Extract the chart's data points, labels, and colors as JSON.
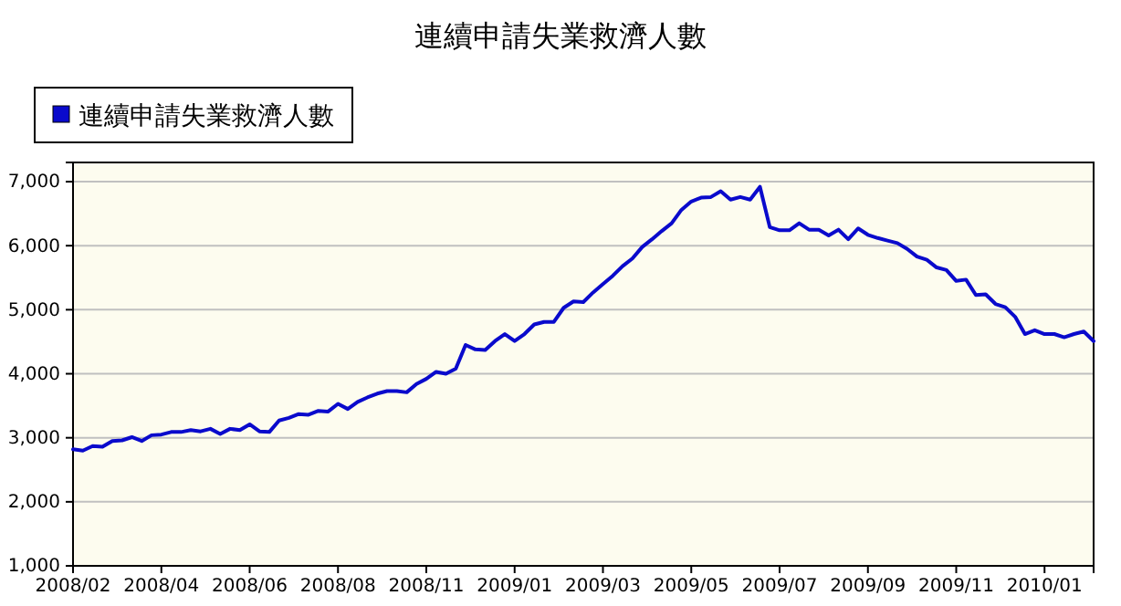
{
  "chart_data": {
    "type": "line",
    "title": "連續申請失業救濟人數",
    "categories": [
      "2008/02",
      null,
      null,
      null,
      null,
      null,
      null,
      null,
      null,
      "2008/04",
      null,
      null,
      null,
      null,
      null,
      null,
      null,
      null,
      "2008/06",
      null,
      null,
      null,
      null,
      null,
      null,
      null,
      null,
      "2008/08",
      null,
      null,
      null,
      null,
      null,
      null,
      null,
      null,
      "2008/11",
      null,
      null,
      null,
      null,
      null,
      null,
      null,
      null,
      "2009/01",
      null,
      null,
      null,
      null,
      null,
      null,
      null,
      null,
      "2009/03",
      null,
      null,
      null,
      null,
      null,
      null,
      null,
      null,
      "2009/05",
      null,
      null,
      null,
      null,
      null,
      null,
      null,
      null,
      "2009/07",
      null,
      null,
      null,
      null,
      null,
      null,
      null,
      null,
      "2009/09",
      null,
      null,
      null,
      null,
      null,
      null,
      null,
      null,
      "2009/11",
      null,
      null,
      null,
      null,
      null,
      null,
      null,
      null,
      "2010/01",
      null,
      null,
      null,
      null,
      null
    ],
    "series": [
      {
        "name": "連續申請失業救濟人數",
        "color": "#0a0acc",
        "values": [
          2820,
          2800,
          2870,
          2860,
          2950,
          2960,
          3010,
          2950,
          3040,
          3050,
          3090,
          3090,
          3120,
          3100,
          3140,
          3060,
          3140,
          3120,
          3210,
          3100,
          3090,
          3270,
          3310,
          3370,
          3360,
          3420,
          3410,
          3530,
          3450,
          3560,
          3630,
          3690,
          3730,
          3730,
          3710,
          3840,
          3920,
          4030,
          4000,
          4080,
          4450,
          4380,
          4370,
          4510,
          4620,
          4510,
          4620,
          4770,
          4810,
          4810,
          5030,
          5130,
          5120,
          5270,
          5400,
          5530,
          5680,
          5800,
          5980,
          6100,
          6230,
          6350,
          6560,
          6690,
          6750,
          6760,
          6850,
          6720,
          6760,
          6720,
          6920,
          6290,
          6240,
          6240,
          6350,
          6250,
          6250,
          6160,
          6250,
          6100,
          6270,
          6170,
          6120,
          6080,
          6040,
          5950,
          5830,
          5780,
          5660,
          5620,
          5450,
          5470,
          5230,
          5240,
          5090,
          5040,
          4890,
          4620,
          4680,
          4620,
          4620,
          4570,
          4620,
          4660,
          4510
        ]
      }
    ],
    "ylim": [
      1000,
      7300
    ],
    "yticks": [
      {
        "value": 1000,
        "label": "1,000"
      },
      {
        "value": 2000,
        "label": "2,000"
      },
      {
        "value": 3000,
        "label": "3,000"
      },
      {
        "value": 4000,
        "label": "4,000"
      },
      {
        "value": 5000,
        "label": "5,000"
      },
      {
        "value": 6000,
        "label": "6,000"
      },
      {
        "value": 7000,
        "label": "7,000"
      }
    ],
    "grid": "y",
    "legend": "top left",
    "marker": "none",
    "line_style": "solid"
  }
}
